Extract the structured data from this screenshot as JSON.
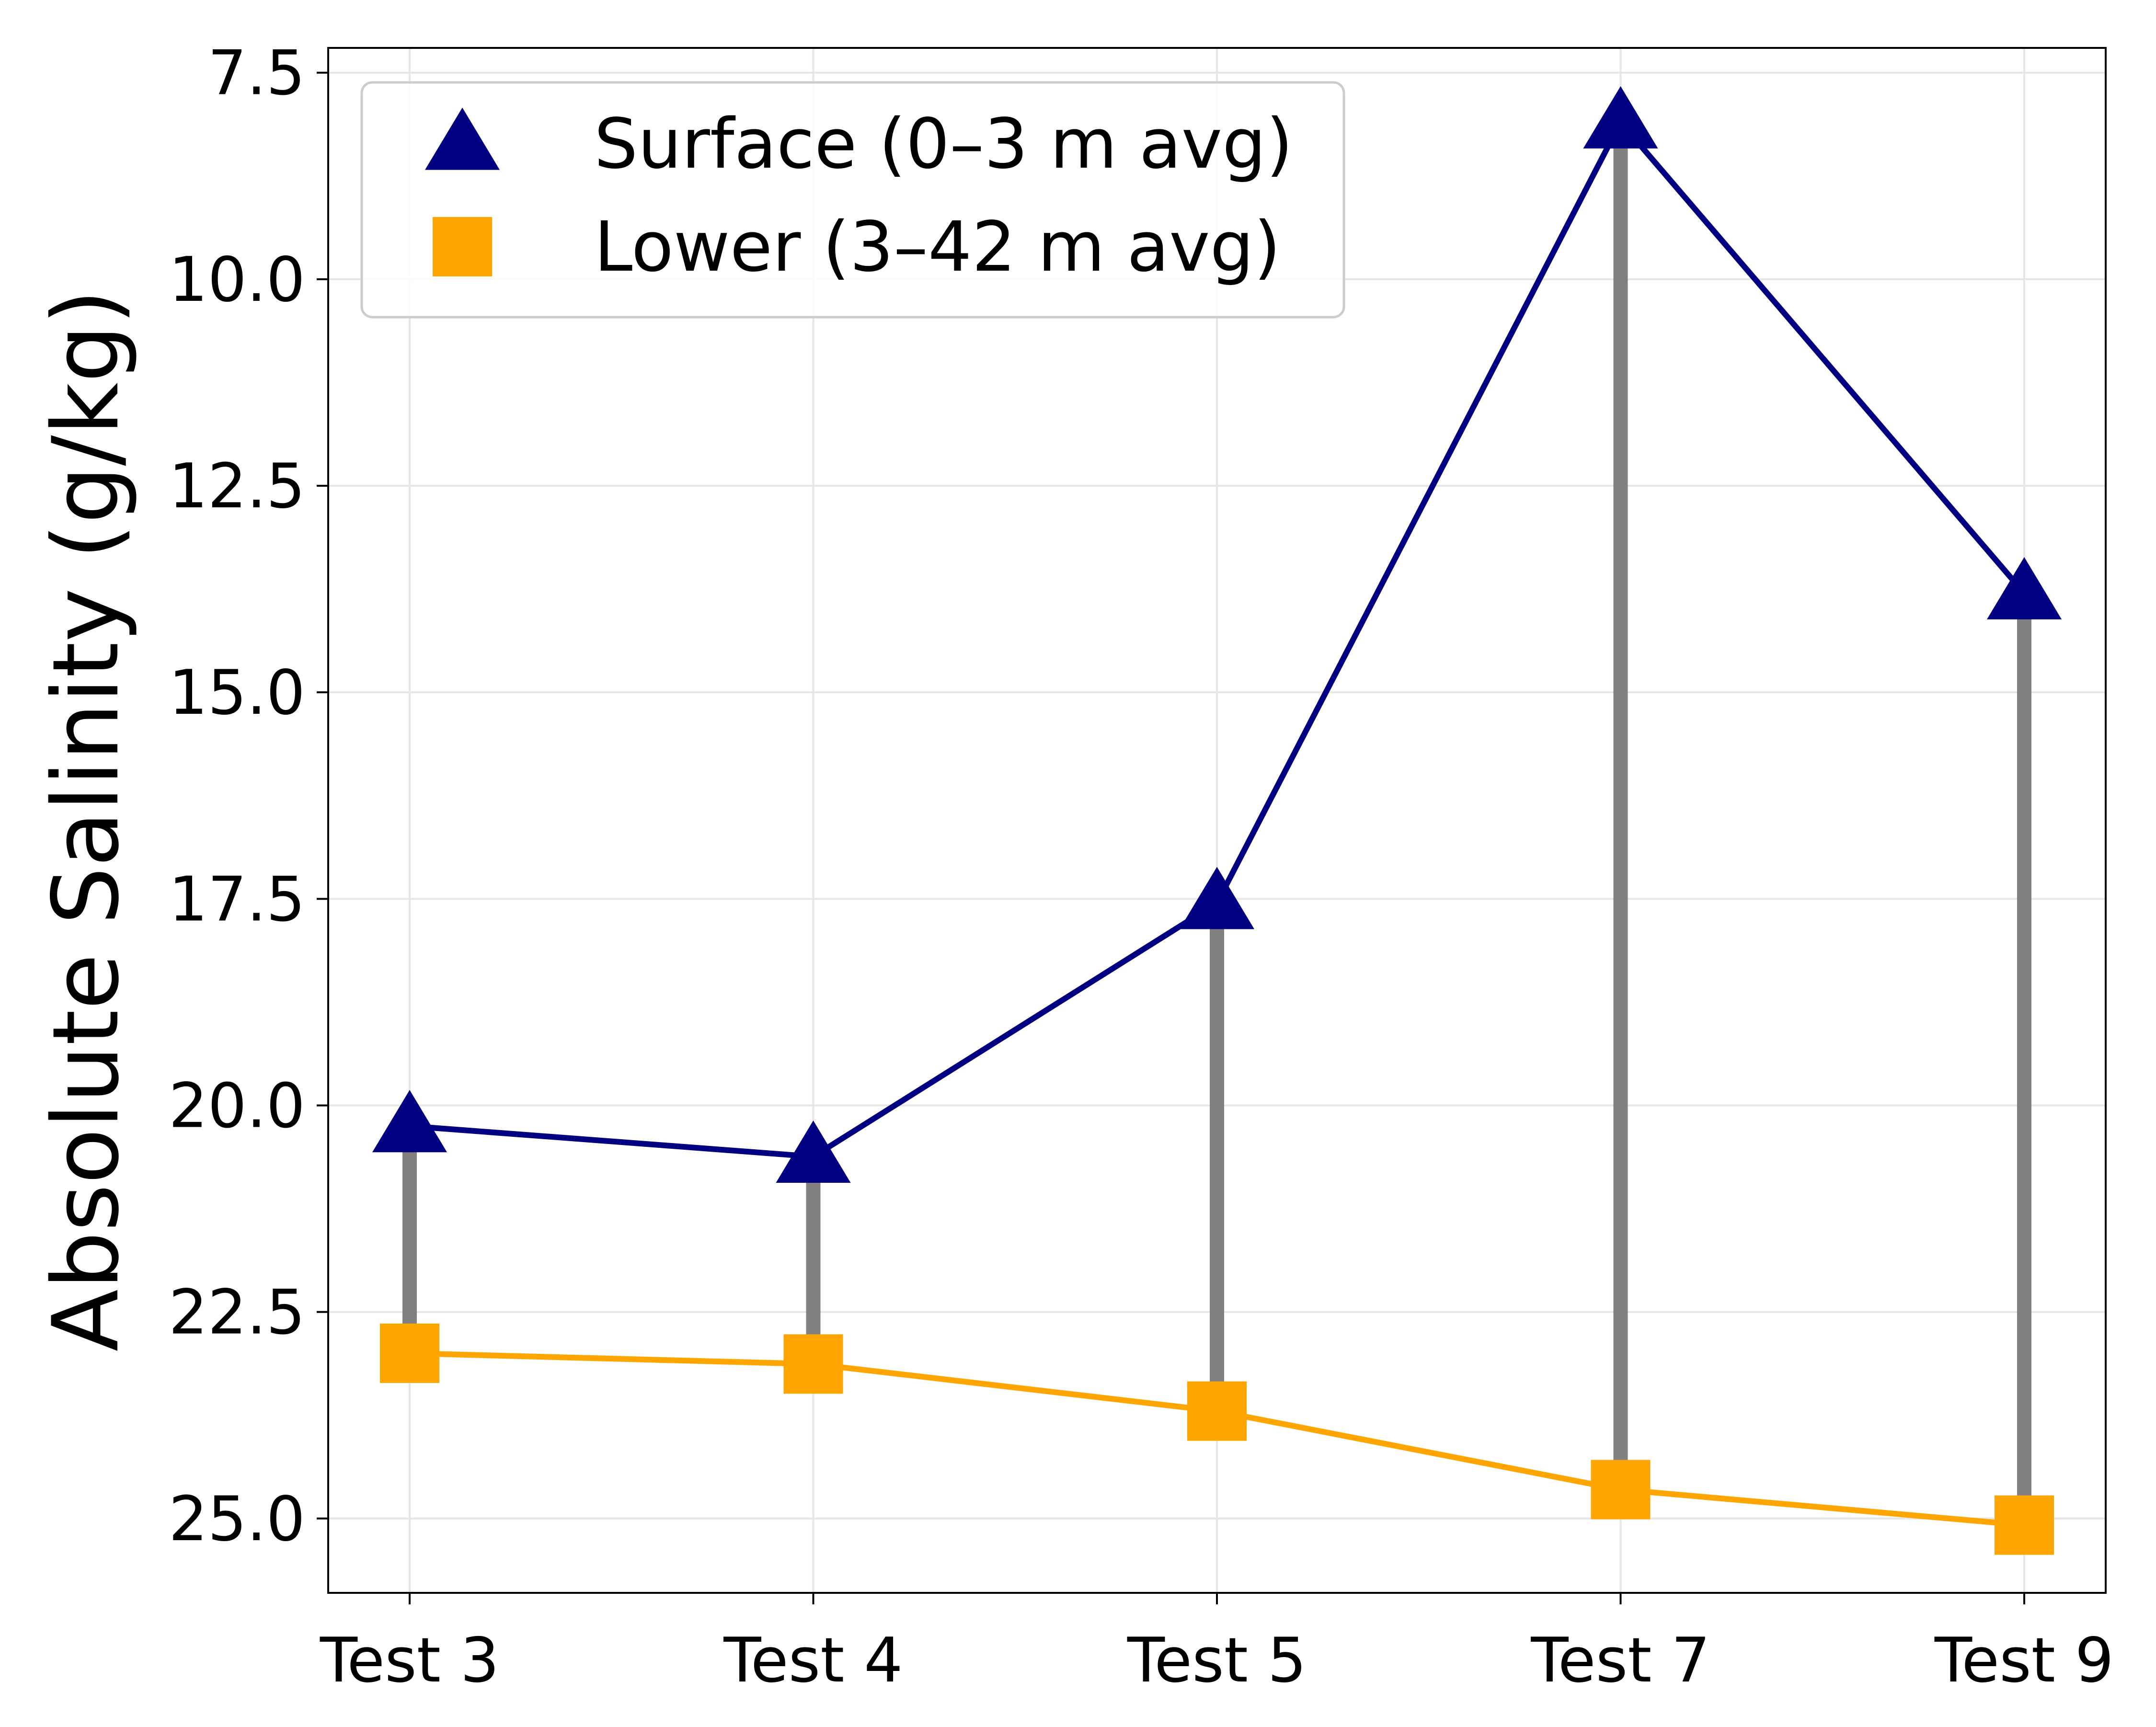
{
  "chart_data": {
    "type": "line",
    "title": "",
    "xlabel": "",
    "ylabel": "Absolute Salinity (g/kg)",
    "y_inverted": true,
    "ylim": [
      7.2,
      25.9
    ],
    "yticks": [
      "7.5",
      "10.0",
      "12.5",
      "15.0",
      "17.5",
      "20.0",
      "22.5",
      "25.0"
    ],
    "categories": [
      "Test 3",
      "Test 4",
      "Test 5",
      "Test 7",
      "Test 9"
    ],
    "grid": true,
    "legend_position": "top-left",
    "connector_color": "#808080",
    "series": [
      {
        "name": "Surface (0–3 m avg)",
        "marker": "triangle",
        "color": "#000080",
        "values": [
          20.25,
          20.62,
          17.55,
          8.1,
          13.8
        ]
      },
      {
        "name": "Lower (3–42 m avg)",
        "marker": "square",
        "color": "#ffa500",
        "values": [
          23.0,
          23.13,
          23.7,
          24.65,
          25.08
        ]
      }
    ]
  }
}
